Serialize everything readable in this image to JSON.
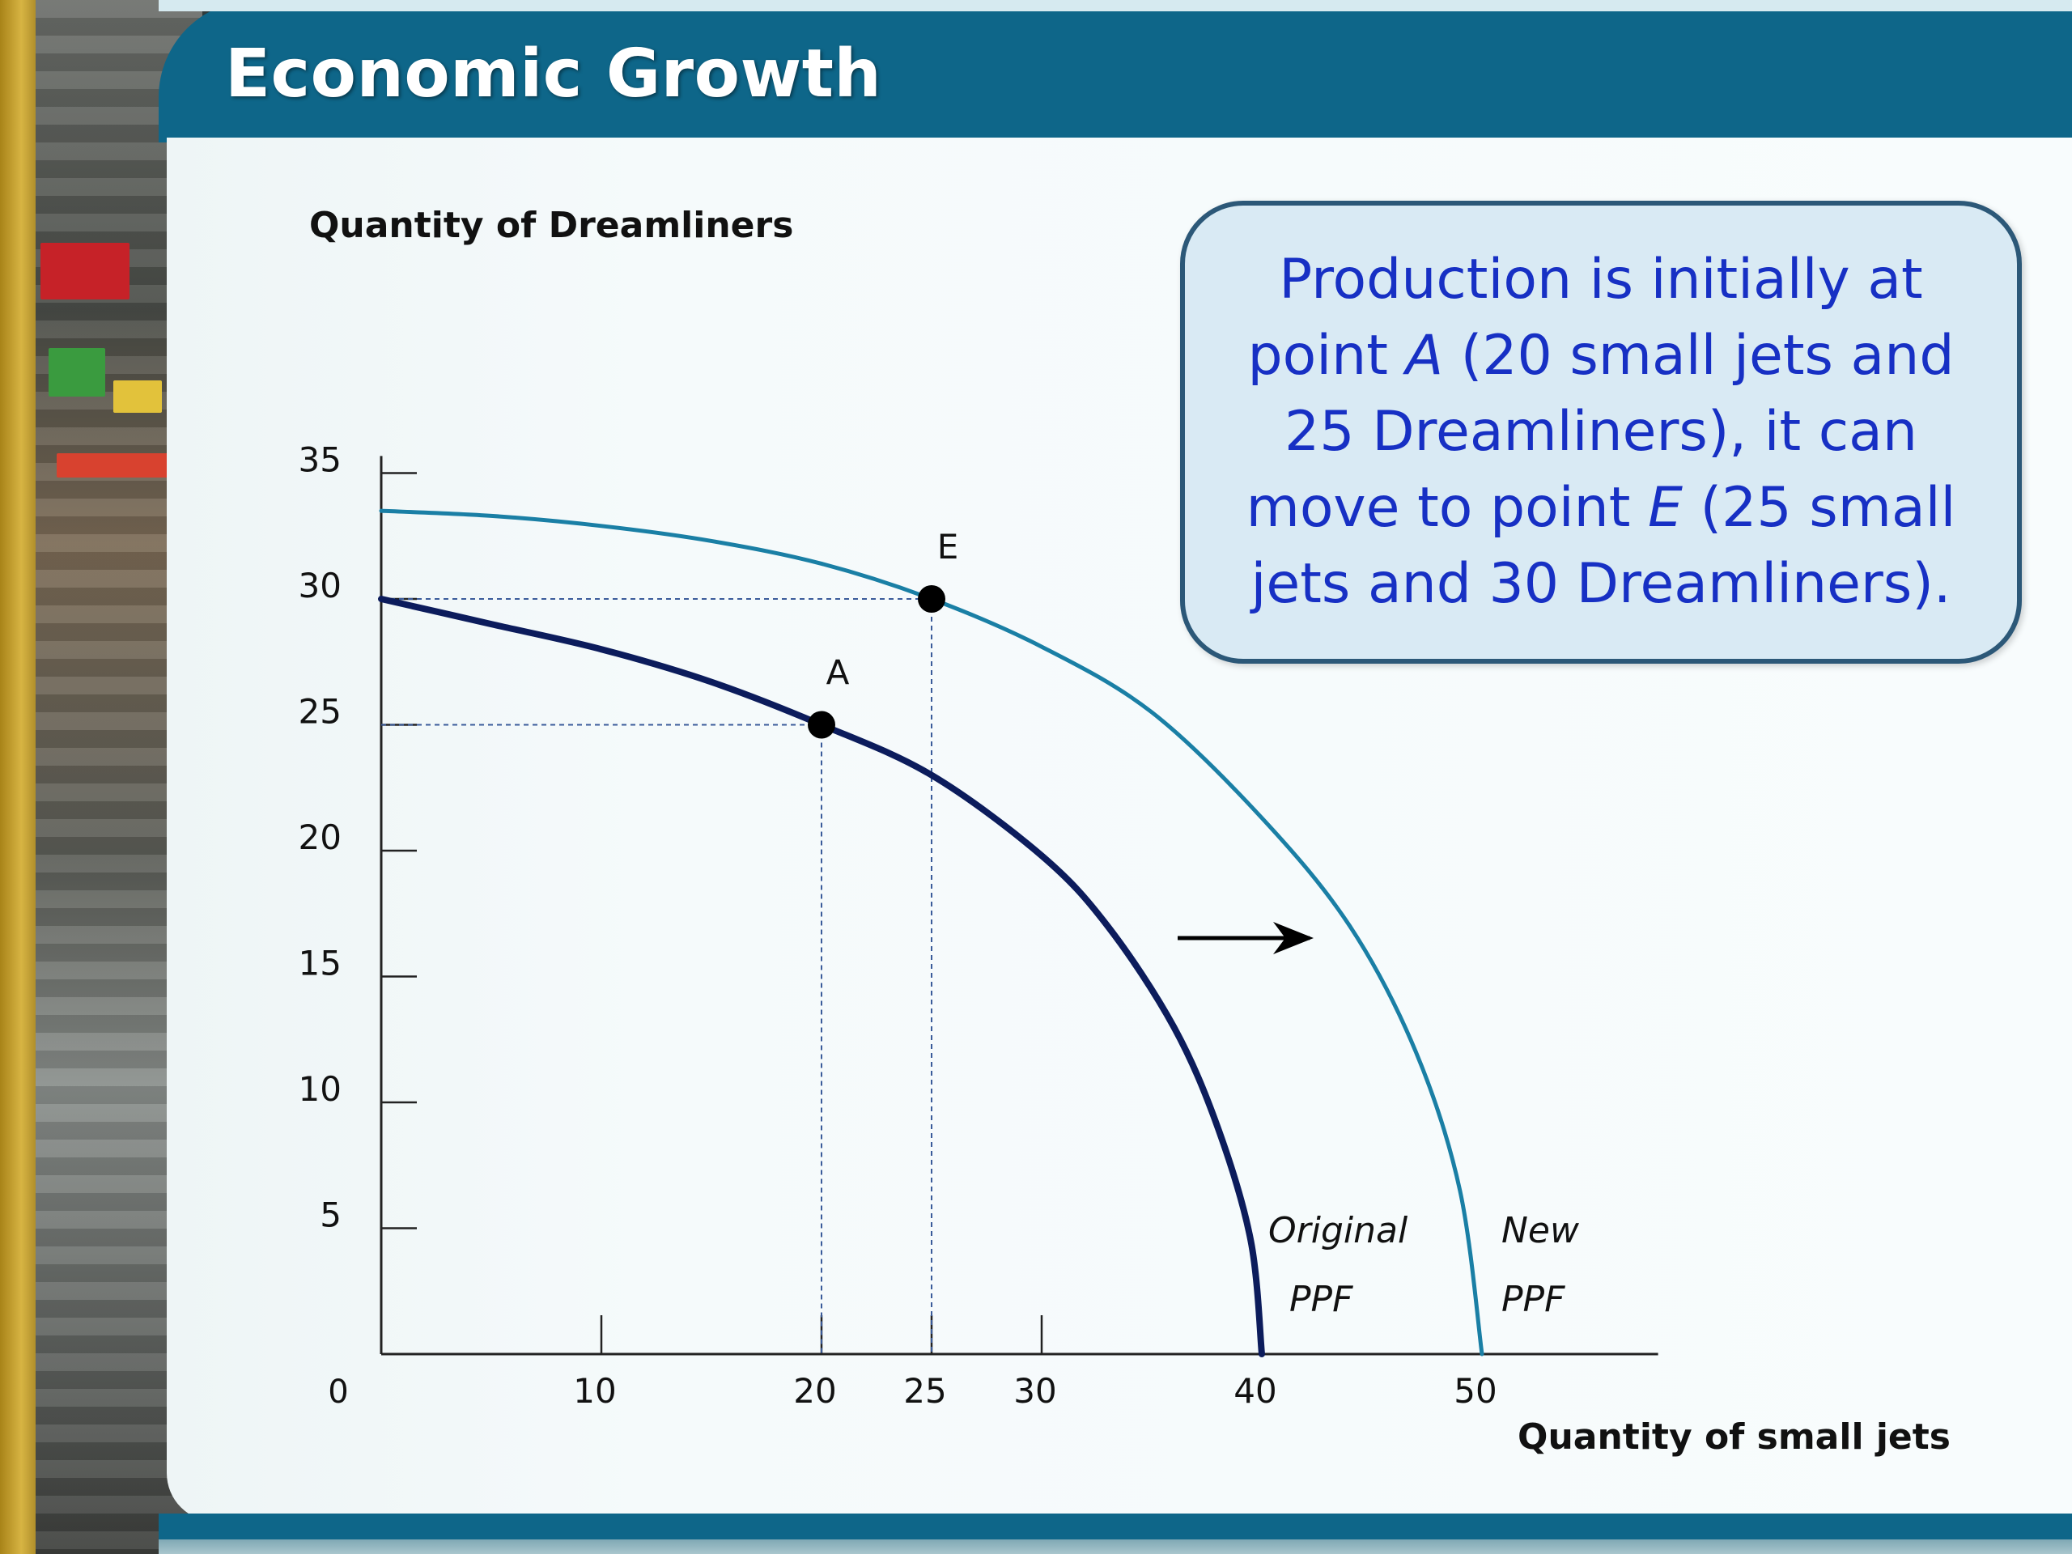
{
  "slide": {
    "title": "Economic Growth"
  },
  "callout": {
    "before": "Production is initially at point ",
    "point_a": "A",
    "middle": " (20 small jets and 25 Dreamliners), it can move to point ",
    "point_e": "E",
    "after": " (25 small jets and 30 Dreamliners)."
  },
  "colors": {
    "header": "#0e6689",
    "original_ppf": "#0c1c5c",
    "new_ppf": "#1a7fa5",
    "callout_text": "#1730c4"
  },
  "chart_data": {
    "type": "line",
    "xlabel": "Quantity of small jets",
    "ylabel": "Quantity of Dreamliners",
    "xlim": [
      0,
      58
    ],
    "ylim": [
      0,
      36
    ],
    "origin_label": "0",
    "x_ticks": [
      10,
      20,
      25,
      30,
      40,
      50
    ],
    "x_tick_marks": [
      10,
      20,
      25,
      30
    ],
    "y_ticks": [
      5,
      10,
      15,
      20,
      25,
      30,
      35
    ],
    "series": [
      {
        "name": "Original PPF",
        "label_lines": [
          "Original",
          "PPF"
        ],
        "color": "#0c1c5c",
        "x": [
          0,
          5,
          10,
          15,
          20,
          25,
          30,
          33,
          36,
          38,
          39.5,
          40
        ],
        "y": [
          30.0,
          29.0,
          28.0,
          26.7,
          25.0,
          23.0,
          19.8,
          17.0,
          13.0,
          9.0,
          4.5,
          0
        ]
      },
      {
        "name": "New PPF",
        "label_lines": [
          "New",
          "PPF"
        ],
        "color": "#1a7fa5",
        "x": [
          0,
          5,
          10,
          15,
          20,
          25,
          30,
          35,
          40,
          44,
          47,
          49,
          50
        ],
        "y": [
          33.5,
          33.3,
          32.9,
          32.3,
          31.4,
          30.0,
          28.1,
          25.5,
          21.3,
          17.0,
          12.0,
          6.5,
          0
        ]
      }
    ],
    "points": [
      {
        "label": "A",
        "x": 20,
        "y": 25
      },
      {
        "label": "E",
        "x": 25,
        "y": 30
      }
    ],
    "annotations": [
      {
        "type": "arrow",
        "direction": "right",
        "meaning": "PPF shifts outward"
      }
    ]
  }
}
